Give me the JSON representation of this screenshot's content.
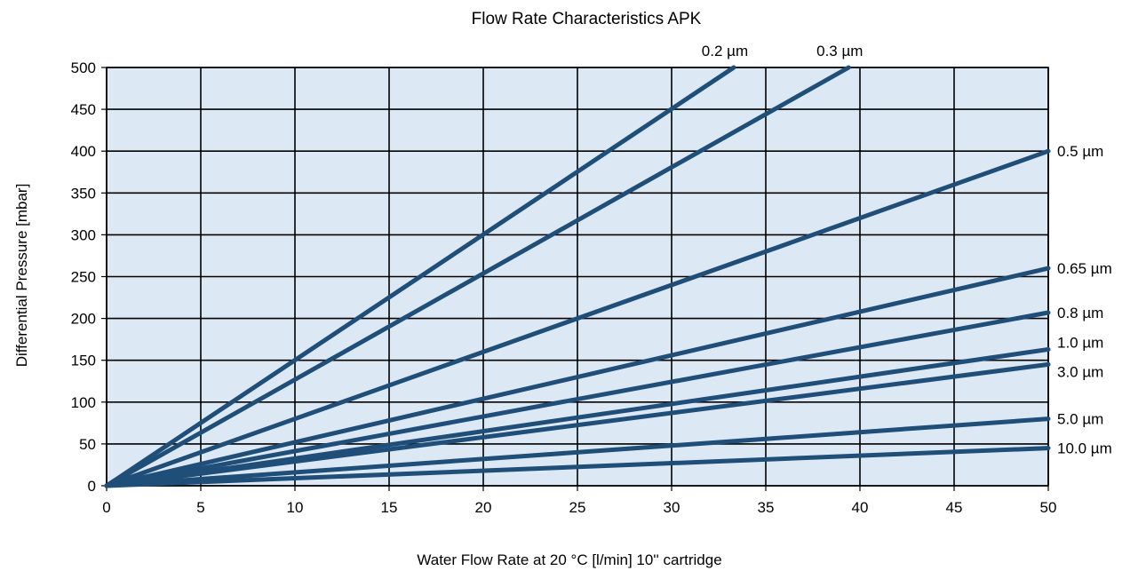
{
  "chart_data": {
    "type": "line",
    "title": "Flow Rate Characteristics APK",
    "xlabel": "Water Flow Rate at 20 °C [l/min] 10'' cartridge",
    "ylabel": "Differential Pressure [mbar]",
    "xlim": [
      0,
      50
    ],
    "ylim": [
      0,
      500
    ],
    "x_ticks": [
      "0",
      "5",
      "10",
      "15",
      "20",
      "25",
      "30",
      "35",
      "40",
      "45",
      "50"
    ],
    "y_ticks": [
      "0",
      "50",
      "100",
      "150",
      "200",
      "250",
      "300",
      "350",
      "400",
      "450",
      "500"
    ],
    "grid": true,
    "legend": "inline labels at line ends",
    "colors": {
      "plot_background": "#dde8f5",
      "line": "#1f4e79",
      "grid": "#000000"
    },
    "series": [
      {
        "name": "0.2 µm",
        "x": [
          0,
          33.3
        ],
        "y": [
          0,
          500
        ]
      },
      {
        "name": "0.3 µm",
        "x": [
          0,
          39.4
        ],
        "y": [
          0,
          500
        ]
      },
      {
        "name": "0.5 µm",
        "x": [
          0,
          50
        ],
        "y": [
          0,
          400
        ]
      },
      {
        "name": "0.65 µm",
        "x": [
          0,
          50
        ],
        "y": [
          0,
          260
        ]
      },
      {
        "name": "0.8 µm",
        "x": [
          0,
          50
        ],
        "y": [
          0,
          207
        ]
      },
      {
        "name": "1.0 µm",
        "x": [
          0,
          50
        ],
        "y": [
          0,
          163
        ]
      },
      {
        "name": "3.0 µm",
        "x": [
          0,
          50
        ],
        "y": [
          0,
          145
        ]
      },
      {
        "name": "5.0 µm",
        "x": [
          0,
          50
        ],
        "y": [
          0,
          80
        ]
      },
      {
        "name": "10.0 µm",
        "x": [
          0,
          50
        ],
        "y": [
          0,
          45
        ]
      }
    ]
  }
}
